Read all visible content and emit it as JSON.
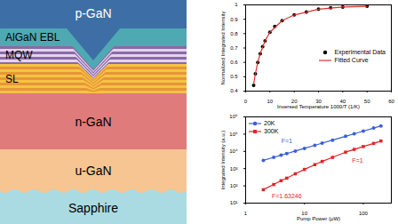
{
  "diagram": {
    "layers": [
      {
        "label": "p-GaN",
        "color": "#3d6fa6"
      },
      {
        "label": "AlGaN EBL",
        "color": "#4fa9b3"
      },
      {
        "label": "MQW",
        "colors": [
          "#8a6aa6",
          "#e3d2ec"
        ]
      },
      {
        "label": "SL",
        "colors": [
          "#f4c443",
          "#e8953a"
        ]
      },
      {
        "label": "n-GaN",
        "color": "#e07b7b"
      },
      {
        "label": "u-GaN",
        "color": "#f7c592"
      },
      {
        "label": "Sapphire",
        "color": "#aadbe3"
      }
    ]
  },
  "chart_data": [
    {
      "type": "scatter",
      "xlabel": "Inversed Temperature 1000/T (1/K)",
      "ylabel": "Normalized Integrated Intensity",
      "xlim": [
        0,
        60
      ],
      "xticks": [
        0,
        10,
        20,
        30,
        40,
        50,
        60
      ],
      "ylim": [
        0.4,
        1
      ],
      "yticks": [
        0.4,
        0.5,
        0.6,
        0.7,
        0.8,
        0.9,
        1
      ],
      "legend": "right",
      "series": [
        {
          "name": "Experimental Data",
          "type": "scatter",
          "color": "#000000",
          "marker": "circle",
          "x": [
            3.3,
            4,
            5,
            6,
            7,
            8,
            10,
            12,
            15,
            20,
            25,
            30,
            35,
            40,
            50
          ],
          "values": [
            0.44,
            0.52,
            0.6,
            0.66,
            0.71,
            0.75,
            0.81,
            0.85,
            0.89,
            0.93,
            0.95,
            0.97,
            0.98,
            0.985,
            0.99
          ]
        },
        {
          "name": "Fitted Curve",
          "type": "line",
          "color": "#e03030",
          "x": [
            3.3,
            4,
            5,
            6,
            8,
            10,
            15,
            20,
            30,
            40,
            50
          ],
          "values": [
            0.45,
            0.52,
            0.6,
            0.66,
            0.75,
            0.81,
            0.89,
            0.93,
            0.97,
            0.985,
            0.99
          ]
        }
      ]
    },
    {
      "type": "line",
      "log": true,
      "xlabel": "Pump Power (μW)",
      "ylabel": "Integrated Intensity (a.u.)",
      "xlim": [
        1,
        300
      ],
      "xticks": [
        1,
        10,
        100
      ],
      "ylim": [
        10,
        1000000
      ],
      "yticks": [
        {
          "value": 10,
          "label": "10¹"
        },
        {
          "value": 100,
          "label": "10²"
        },
        {
          "value": 1000,
          "label": "10³"
        },
        {
          "value": 10000,
          "label": "10⁴"
        },
        {
          "value": 100000,
          "label": "10⁵"
        },
        {
          "value": 1000000,
          "label": "10⁶"
        }
      ],
      "legend": "top-left",
      "series": [
        {
          "name": "20K",
          "color": "#3b5fd9",
          "marker": "circle",
          "x": [
            2,
            3,
            4,
            5,
            7,
            10,
            15,
            20,
            30,
            50,
            70,
            100,
            150,
            200
          ],
          "values": [
            3000,
            4500,
            6000,
            7500,
            10500,
            15000,
            22500,
            30000,
            45000,
            75000,
            105000,
            150000,
            225000,
            300000
          ]
        },
        {
          "name": "300K",
          "color": "#e0262a",
          "marker": "square",
          "x": [
            2,
            3,
            4,
            5,
            7,
            10,
            15,
            20,
            30,
            50,
            70,
            100,
            150,
            200
          ],
          "values": [
            60,
            120,
            200,
            280,
            500,
            900,
            1700,
            2600,
            4500,
            9000,
            13000,
            19000,
            29000,
            40000
          ]
        }
      ],
      "annotations": [
        {
          "text": "F=1",
          "x": 5,
          "y": 40000,
          "color": "#3b5fd9"
        },
        {
          "text": "F=1",
          "x": 80,
          "y": 3000,
          "color": "#e0262a"
        },
        {
          "text": "F=1.63246",
          "x": 5,
          "y": 25,
          "color": "#e0262a"
        }
      ]
    }
  ]
}
